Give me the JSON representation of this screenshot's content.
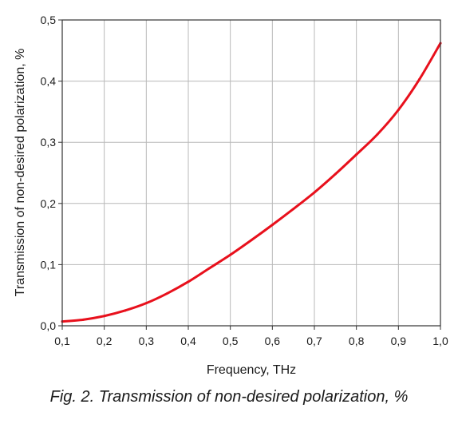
{
  "caption": "Fig. 2. Transmission of non-desired polarization, %",
  "chart_data": {
    "type": "line",
    "title": "",
    "xlabel": "Frequency, THz",
    "ylabel": "Transmission of non-desired polarization, %",
    "xlim": [
      0.1,
      1.0
    ],
    "ylim": [
      0.0,
      0.5
    ],
    "xticks": [
      0.1,
      0.2,
      0.3,
      0.4,
      0.5,
      0.6,
      0.7,
      0.8,
      0.9,
      1.0
    ],
    "yticks": [
      0.0,
      0.1,
      0.2,
      0.3,
      0.4,
      0.5
    ],
    "xtick_labels": [
      "0,1",
      "0,2",
      "0,3",
      "0,4",
      "0,5",
      "0,6",
      "0,7",
      "0,8",
      "0,9",
      "1,0"
    ],
    "ytick_labels": [
      "0,0",
      "0,1",
      "0,2",
      "0,3",
      "0,4",
      "0,5"
    ],
    "grid": true,
    "series": [
      {
        "color": "#e8101c",
        "x": [
          0.1,
          0.15,
          0.2,
          0.25,
          0.3,
          0.35,
          0.4,
          0.45,
          0.5,
          0.55,
          0.6,
          0.65,
          0.7,
          0.75,
          0.8,
          0.85,
          0.9,
          0.95,
          1.0
        ],
        "y": [
          0.007,
          0.01,
          0.016,
          0.025,
          0.037,
          0.053,
          0.072,
          0.094,
          0.116,
          0.14,
          0.165,
          0.191,
          0.218,
          0.248,
          0.28,
          0.313,
          0.353,
          0.403,
          0.462
        ]
      }
    ]
  }
}
